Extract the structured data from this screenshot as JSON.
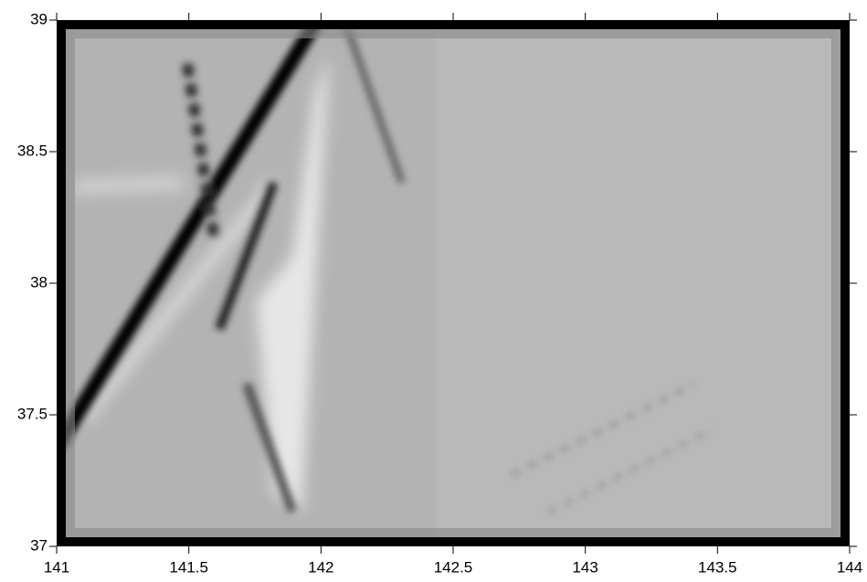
{
  "chart_data": {
    "type": "map",
    "xlim": [
      141,
      144
    ],
    "xticks": [
      141,
      141.5,
      142,
      142.5,
      143,
      143.5,
      144
    ],
    "ylim": [
      37,
      39
    ],
    "yticks": [
      37,
      37.5,
      38,
      38.5,
      39
    ]
  }
}
